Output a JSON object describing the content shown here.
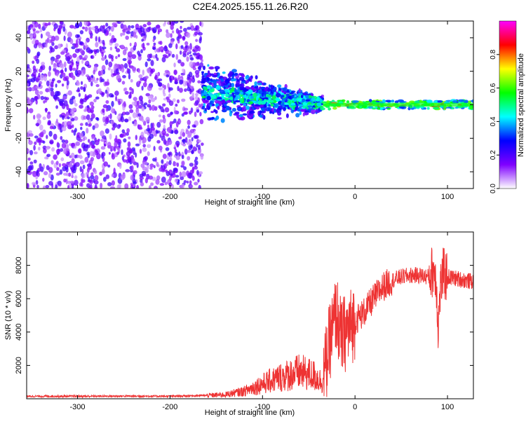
{
  "figure_title": "C2E4.2025.155.11.26.R20",
  "chart_data": [
    {
      "type": "heatmap",
      "xlabel": "Height of straight line (km)",
      "ylabel": "Frequency (Hz)",
      "xlim": [
        -355,
        128
      ],
      "ylim": [
        -50,
        50
      ],
      "xticks": [
        -300,
        -200,
        -100,
        0,
        100
      ],
      "yticks": [
        -40,
        -20,
        0,
        20,
        40
      ],
      "grid": false,
      "colorbar": {
        "label": "Normalized spectral amplitude",
        "range": [
          0,
          1
        ],
        "ticks": [
          0.0,
          0.2,
          0.4,
          0.6,
          0.8
        ],
        "colormap": [
          "#ffffff",
          "#7f00ff",
          "#0000ff",
          "#00ffff",
          "#00ff00",
          "#ffff00",
          "#ff0000",
          "#ff00ff"
        ]
      },
      "regions": [
        {
          "x": [
            -355,
            -165
          ],
          "frequency_spread_hz": [
            -50,
            50
          ],
          "amplitude": "low, diffuse noise (~0.1-0.2)"
        },
        {
          "x": [
            -165,
            -35
          ],
          "frequency_spread_hz": [
            -22,
            20
          ],
          "amplitude": "medium (~0.2-0.5), narrowing toward 0 Hz"
        },
        {
          "x": [
            -35,
            128
          ],
          "frequency_spread_hz": [
            -3,
            3
          ],
          "amplitude": "high (~0.5-0.9) carrier line near 0 Hz"
        }
      ]
    },
    {
      "type": "line",
      "xlabel": "Height of straight line (km)",
      "ylabel": "SNR (10 * v/v)",
      "xlim": [
        -355,
        128
      ],
      "ylim": [
        0,
        10000
      ],
      "xticks": [
        -300,
        -200,
        -100,
        0,
        100
      ],
      "yticks": [
        2000,
        4000,
        6000,
        8000
      ],
      "grid": false,
      "color": "#ee3333",
      "x": [
        -355,
        -300,
        -250,
        -200,
        -160,
        -140,
        -120,
        -100,
        -80,
        -60,
        -45,
        -35,
        -30,
        -27,
        -24,
        -20,
        -15,
        -10,
        -5,
        0,
        10,
        20,
        30,
        40,
        50,
        60,
        70,
        80,
        85,
        88,
        90,
        92,
        95,
        100,
        110,
        120,
        128
      ],
      "values": [
        150,
        150,
        160,
        150,
        200,
        250,
        450,
        900,
        1300,
        1600,
        1400,
        1000,
        2500,
        3500,
        4200,
        5200,
        3600,
        4000,
        4300,
        4700,
        5200,
        6000,
        6700,
        7100,
        7300,
        7400,
        7400,
        7300,
        7800,
        7000,
        4200,
        6500,
        7500,
        7300,
        7200,
        7100,
        7000
      ]
    }
  ]
}
